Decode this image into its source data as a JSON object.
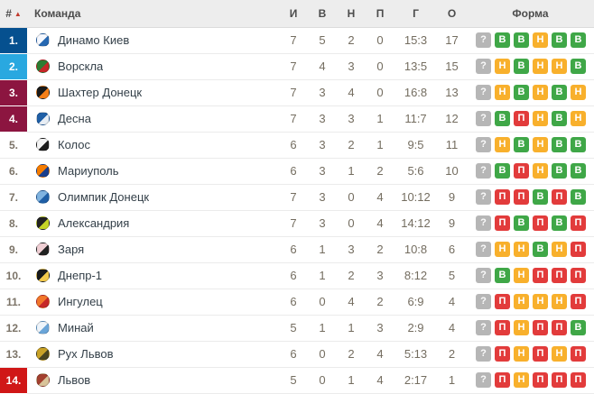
{
  "table": {
    "header": {
      "rank": "#",
      "sort_icon": "▲",
      "team": "Команда",
      "played": "И",
      "wins": "В",
      "draws": "Н",
      "losses": "П",
      "goals": "Г",
      "points": "О",
      "form": "Форма"
    },
    "rows": [
      {
        "rank": "1.",
        "team": "Динамо Киев",
        "played": "7",
        "wins": "5",
        "draws": "2",
        "losses": "0",
        "goals": "15:3",
        "points": "17",
        "form": [
          "?",
          "В",
          "В",
          "Н",
          "В",
          "В"
        ],
        "rank_color": "#05508f",
        "logo_colors": [
          "#f5f8ff",
          "#2668b2"
        ]
      },
      {
        "rank": "2.",
        "team": "Ворскла",
        "played": "7",
        "wins": "4",
        "draws": "3",
        "losses": "0",
        "goals": "13:5",
        "points": "15",
        "form": [
          "?",
          "Н",
          "В",
          "Н",
          "Н",
          "В"
        ],
        "rank_color": "#29a8e0",
        "logo_colors": [
          "#2e7d32",
          "#c62828"
        ]
      },
      {
        "rank": "3.",
        "team": "Шахтер Донецк",
        "played": "7",
        "wins": "3",
        "draws": "4",
        "losses": "0",
        "goals": "16:8",
        "points": "13",
        "form": [
          "?",
          "Н",
          "В",
          "Н",
          "В",
          "Н"
        ],
        "rank_color": "#8c1540",
        "logo_colors": [
          "#1a1a1a",
          "#f57f17"
        ]
      },
      {
        "rank": "4.",
        "team": "Десна",
        "played": "7",
        "wins": "3",
        "draws": "3",
        "losses": "1",
        "goals": "11:7",
        "points": "12",
        "form": [
          "?",
          "В",
          "П",
          "Н",
          "В",
          "Н"
        ],
        "rank_color": "#8c1540",
        "logo_colors": [
          "#1f5fa6",
          "#e8eef5"
        ]
      },
      {
        "rank": "5.",
        "team": "Колос",
        "played": "6",
        "wins": "3",
        "draws": "2",
        "losses": "1",
        "goals": "9:5",
        "points": "11",
        "form": [
          "?",
          "Н",
          "В",
          "Н",
          "В",
          "В"
        ],
        "rank_color": null,
        "logo_colors": [
          "#f4f4f4",
          "#1c1c1c"
        ]
      },
      {
        "rank": "6.",
        "team": "Мариуполь",
        "played": "6",
        "wins": "3",
        "draws": "1",
        "losses": "2",
        "goals": "5:6",
        "points": "10",
        "form": [
          "?",
          "В",
          "П",
          "Н",
          "В",
          "В"
        ],
        "rank_color": null,
        "logo_colors": [
          "#f57c00",
          "#1a3e8c"
        ]
      },
      {
        "rank": "7.",
        "team": "Олимпик Донецк",
        "played": "7",
        "wins": "3",
        "draws": "0",
        "losses": "4",
        "goals": "10:12",
        "points": "9",
        "form": [
          "?",
          "П",
          "П",
          "В",
          "П",
          "В"
        ],
        "rank_color": null,
        "logo_colors": [
          "#7fb3e0",
          "#1f5fa6"
        ]
      },
      {
        "rank": "8.",
        "team": "Александрия",
        "played": "7",
        "wins": "3",
        "draws": "0",
        "losses": "4",
        "goals": "14:12",
        "points": "9",
        "form": [
          "?",
          "П",
          "В",
          "П",
          "В",
          "П"
        ],
        "rank_color": null,
        "logo_colors": [
          "#222222",
          "#c5d426"
        ]
      },
      {
        "rank": "9.",
        "team": "Заря",
        "played": "6",
        "wins": "1",
        "draws": "3",
        "losses": "2",
        "goals": "10:8",
        "points": "6",
        "form": [
          "?",
          "Н",
          "Н",
          "В",
          "Н",
          "П"
        ],
        "rank_color": null,
        "logo_colors": [
          "#f0cfd4",
          "#222222"
        ]
      },
      {
        "rank": "10.",
        "team": "Днепр-1",
        "played": "6",
        "wins": "1",
        "draws": "2",
        "losses": "3",
        "goals": "8:12",
        "points": "5",
        "form": [
          "?",
          "В",
          "Н",
          "П",
          "П",
          "П"
        ],
        "rank_color": null,
        "logo_colors": [
          "#17191c",
          "#f2c94c"
        ]
      },
      {
        "rank": "11.",
        "team": "Ингулец",
        "played": "6",
        "wins": "0",
        "draws": "4",
        "losses": "2",
        "goals": "6:9",
        "points": "4",
        "form": [
          "?",
          "П",
          "Н",
          "Н",
          "Н",
          "П"
        ],
        "rank_color": null,
        "logo_colors": [
          "#f2762a",
          "#c62828"
        ]
      },
      {
        "rank": "12.",
        "team": "Минай",
        "played": "5",
        "wins": "1",
        "draws": "1",
        "losses": "3",
        "goals": "2:9",
        "points": "4",
        "form": [
          "?",
          "П",
          "Н",
          "П",
          "П",
          "В"
        ],
        "rank_color": null,
        "logo_colors": [
          "#eef4fa",
          "#6aa5d8"
        ]
      },
      {
        "rank": "13.",
        "team": "Рух Львов",
        "played": "6",
        "wins": "0",
        "draws": "2",
        "losses": "4",
        "goals": "5:13",
        "points": "2",
        "form": [
          "?",
          "П",
          "Н",
          "П",
          "Н",
          "П"
        ],
        "rank_color": null,
        "logo_colors": [
          "#c9a227",
          "#4a451f"
        ]
      },
      {
        "rank": "14.",
        "team": "Львов",
        "played": "5",
        "wins": "0",
        "draws": "1",
        "losses": "4",
        "goals": "2:17",
        "points": "1",
        "form": [
          "?",
          "П",
          "Н",
          "П",
          "П",
          "П"
        ],
        "rank_color": "#d01717",
        "logo_colors": [
          "#a3402f",
          "#d9c49a"
        ]
      }
    ]
  },
  "colors": {
    "win": "#3fa747",
    "draw": "#f8b02c",
    "loss": "#e23b3b",
    "unknown": "#b6b6b6",
    "sort_arrow": "#c13b2e",
    "rank_champions": "#05508f",
    "rank_champions_qual": "#29a8e0",
    "rank_europa": "#8c1540",
    "rank_relegation": "#d01717",
    "form_map": {
      "?": "unknown",
      "В": "win",
      "Н": "draw",
      "П": "loss"
    }
  }
}
